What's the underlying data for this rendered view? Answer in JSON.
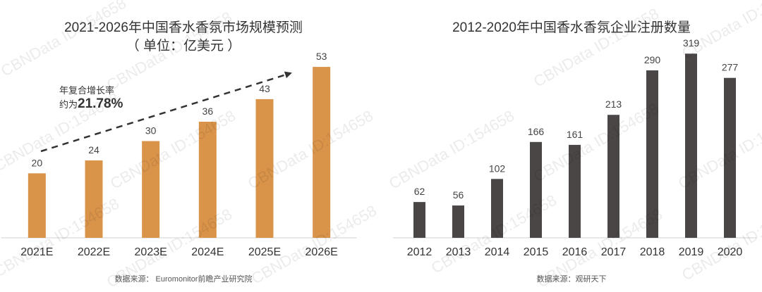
{
  "watermark_text": "CBNData ID:154658",
  "charts": [
    {
      "title": "2021-2026年中国香水香氛市场规模预测",
      "subtitle": "（ 单位：亿美元 ）",
      "source": "数据来源： Euromonitor前瞻产业研究院",
      "annotation": {
        "line1": "年复合增长率",
        "line2_prefix": "约为",
        "line2_value": "21.78%"
      },
      "color": "#D9944A"
    },
    {
      "title": "2012-2020年中国香水香氛企业注册数量",
      "source": "数据来源：观研天下",
      "color": "#4A4646"
    }
  ],
  "chart_data": [
    {
      "type": "bar",
      "title": "2021-2026年中国香水香氛市场规模预测",
      "subtitle": "（ 单位：亿美元 ）",
      "categories": [
        "2021E",
        "2022E",
        "2023E",
        "2024E",
        "2025E",
        "2026E"
      ],
      "values": [
        20,
        24,
        30,
        36,
        43,
        53
      ],
      "xlabel": "",
      "ylabel": "",
      "ylim": [
        0,
        60
      ],
      "grid": false,
      "bar_color": "#D9944A",
      "annotation": "年复合增长率 约为21.78%"
    },
    {
      "type": "bar",
      "title": "2012-2020年中国香水香氛企业注册数量",
      "categories": [
        "2012",
        "2013",
        "2014",
        "2015",
        "2016",
        "2017",
        "2018",
        "2019",
        "2020"
      ],
      "values": [
        62,
        56,
        102,
        166,
        161,
        213,
        290,
        319,
        277
      ],
      "xlabel": "",
      "ylabel": "",
      "ylim": [
        0,
        340
      ],
      "grid": false,
      "bar_color": "#4A4646"
    }
  ]
}
